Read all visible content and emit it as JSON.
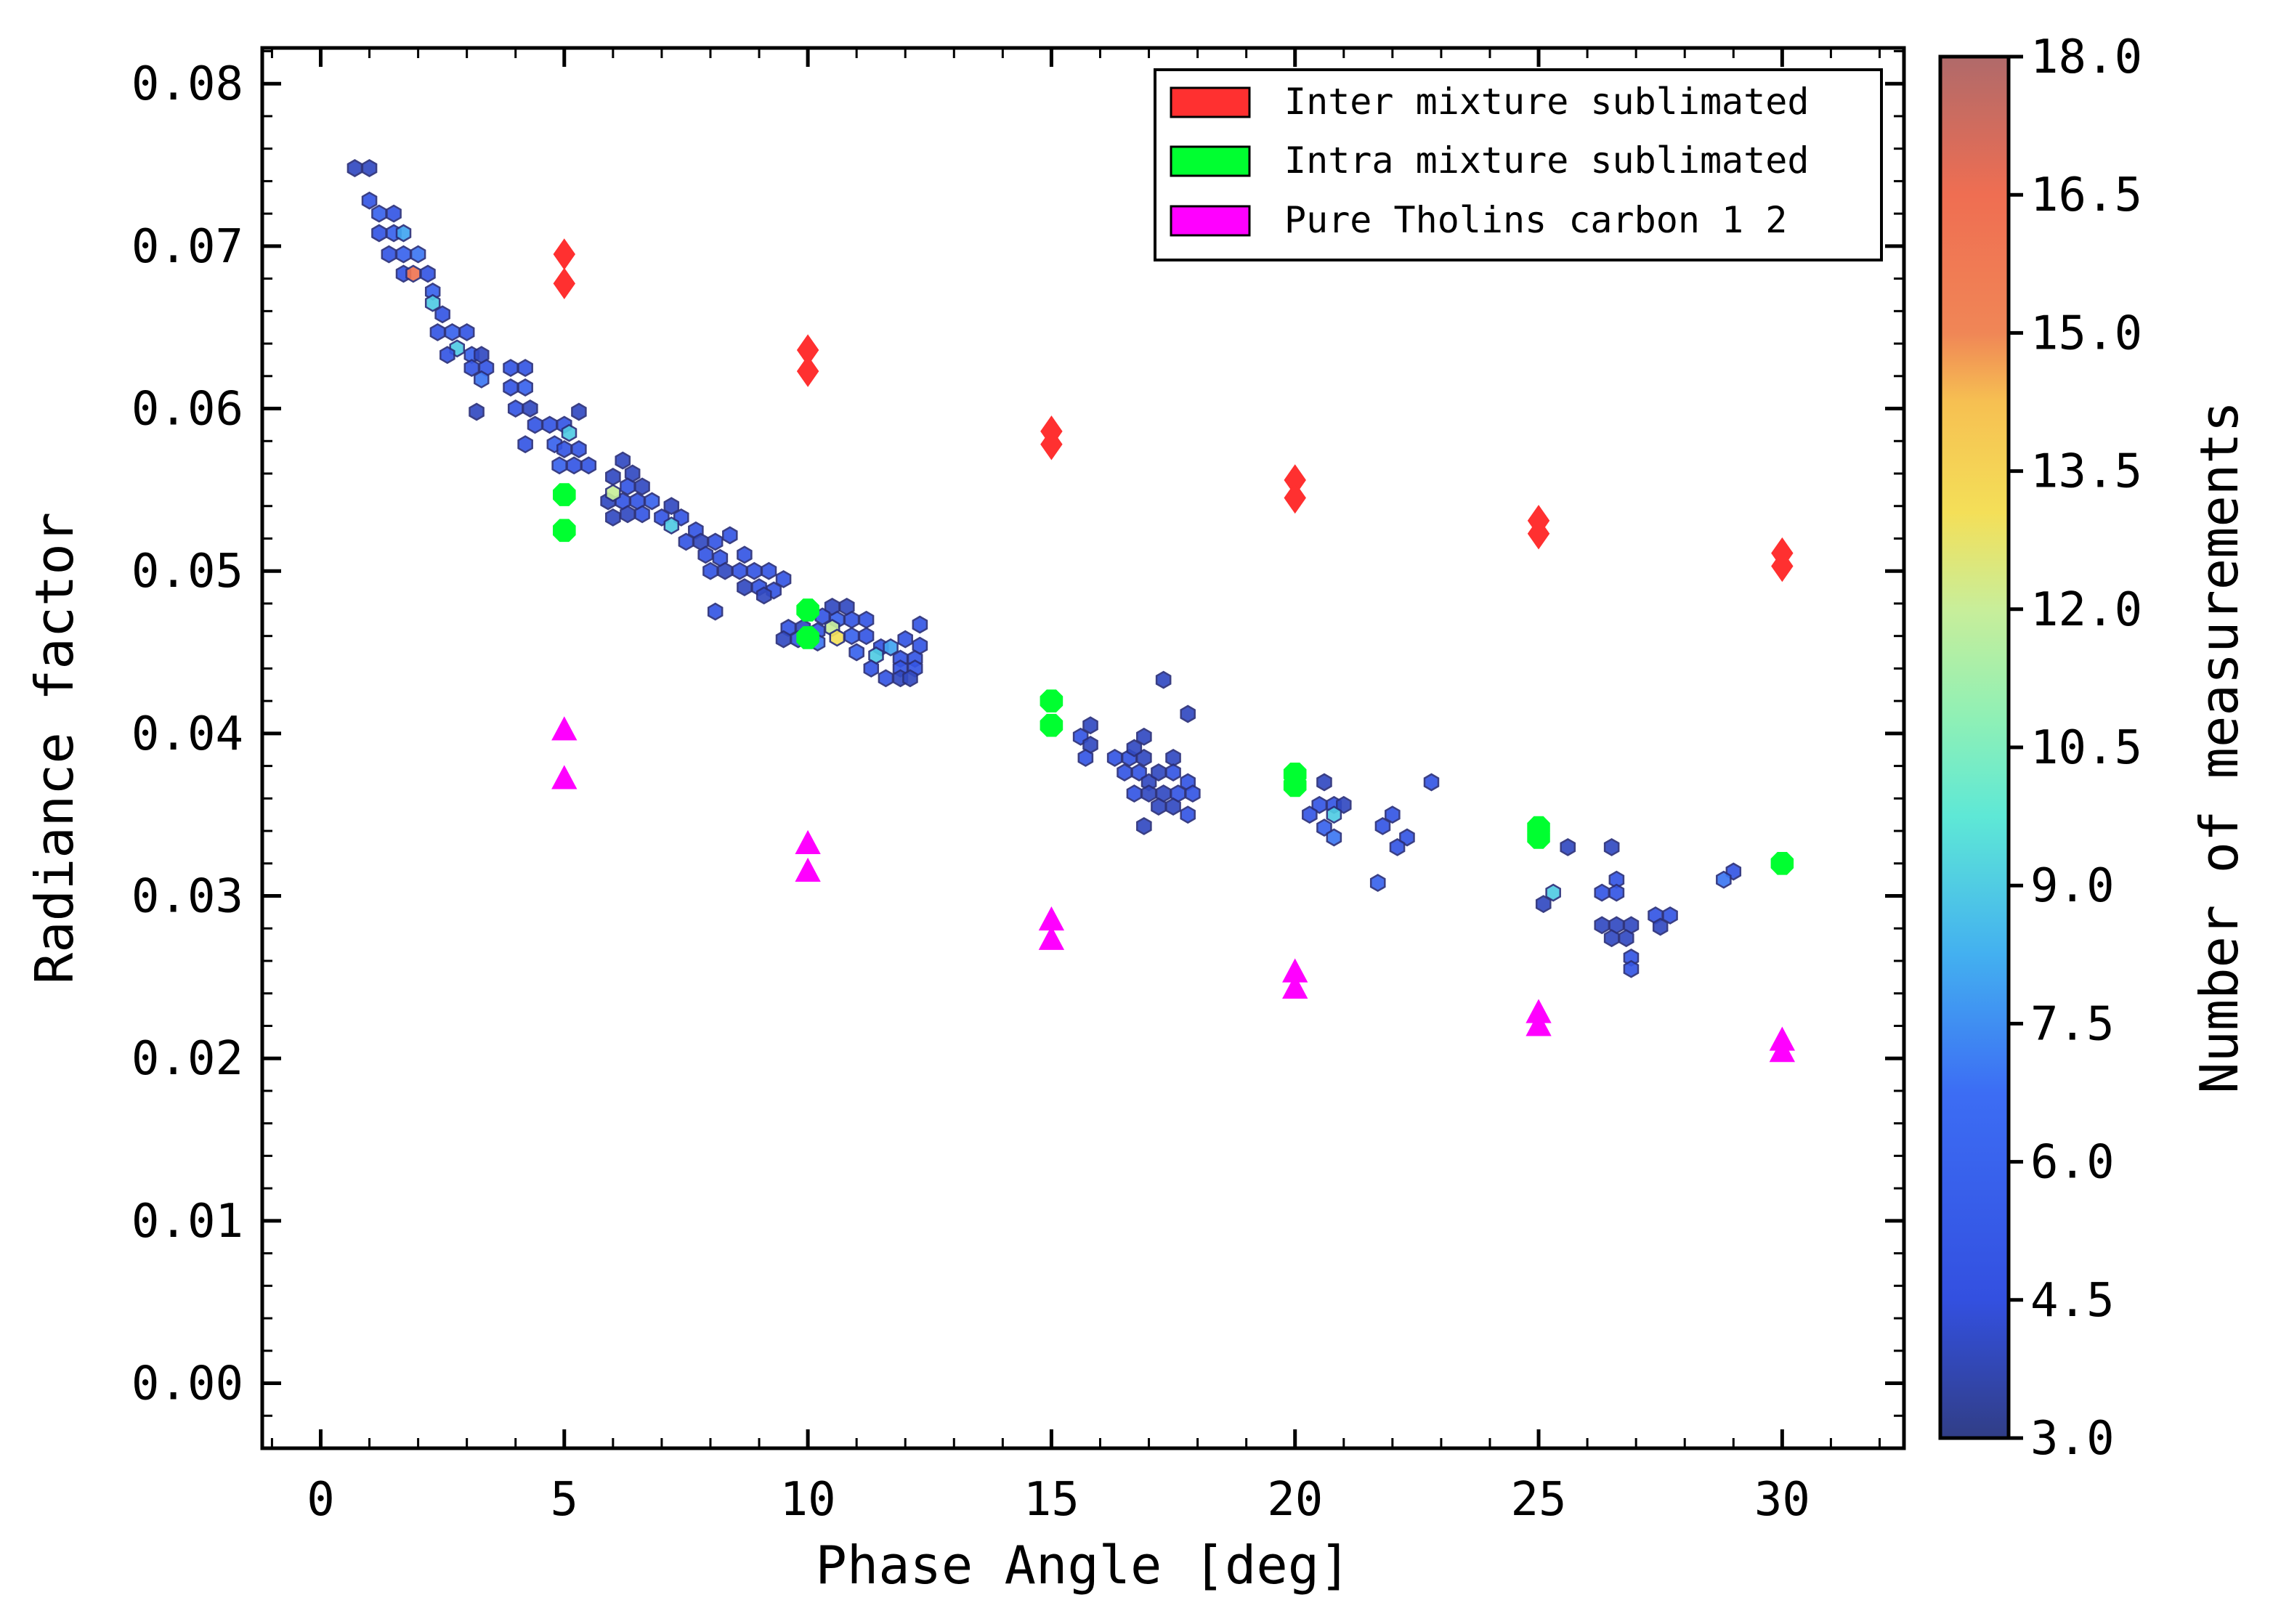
{
  "chart_data": {
    "type": "scatter",
    "xlabel": "Phase Angle [deg]",
    "ylabel": "Radiance factor",
    "xlim": [
      -1.2,
      32.5
    ],
    "ylim": [
      -0.004,
      0.0822
    ],
    "xticks": [
      0,
      5,
      10,
      15,
      20,
      25,
      30
    ],
    "xtick_labels": [
      "0",
      "5",
      "10",
      "15",
      "20",
      "25",
      "30"
    ],
    "yticks": [
      0.0,
      0.01,
      0.02,
      0.03,
      0.04,
      0.05,
      0.06,
      0.07,
      0.08
    ],
    "ytick_labels": [
      "0.00",
      "0.01",
      "0.02",
      "0.03",
      "0.04",
      "0.05",
      "0.06",
      "0.07",
      "0.08"
    ],
    "legend_position": "top-right",
    "series": [
      {
        "name": "Inter mixture sublimated",
        "color": "#ff3030",
        "marker": "diamond",
        "x": [
          5,
          5,
          10,
          10,
          15,
          15,
          20,
          20,
          25,
          25,
          30,
          30
        ],
        "y": [
          0.0695,
          0.0677,
          0.0636,
          0.0623,
          0.0586,
          0.0578,
          0.0556,
          0.0545,
          0.0531,
          0.0523,
          0.0511,
          0.0503
        ]
      },
      {
        "name": "Intra mixture sublimated",
        "color": "#00ff30",
        "marker": "octagon",
        "x": [
          5,
          5,
          10,
          10,
          15,
          15,
          20,
          20,
          25,
          25,
          30
        ],
        "y": [
          0.0547,
          0.0525,
          0.0476,
          0.0459,
          0.042,
          0.0405,
          0.0375,
          0.0368,
          0.0342,
          0.0336,
          0.032
        ]
      },
      {
        "name": "Pure Tholins carbon 1 2",
        "color": "#ff00ff",
        "marker": "triangle",
        "x": [
          5,
          5,
          10,
          10,
          15,
          15,
          20,
          20,
          25,
          25,
          30,
          30
        ],
        "y": [
          0.0402,
          0.0372,
          0.0332,
          0.0315,
          0.0285,
          0.0273,
          0.0253,
          0.0243,
          0.0228,
          0.022,
          0.0211,
          0.0204
        ]
      }
    ],
    "hexbin": {
      "name": "Number of measurements",
      "colormap": "jet",
      "vmin": 3.0,
      "vmax": 18.0,
      "points": [
        [
          0.7,
          0.0748,
          4
        ],
        [
          1.0,
          0.0748,
          4
        ],
        [
          1.0,
          0.0728,
          5
        ],
        [
          1.2,
          0.072,
          6
        ],
        [
          1.5,
          0.072,
          5
        ],
        [
          1.2,
          0.0708,
          5
        ],
        [
          1.5,
          0.0708,
          6
        ],
        [
          1.7,
          0.0708,
          8
        ],
        [
          1.4,
          0.0695,
          5
        ],
        [
          1.7,
          0.0695,
          6
        ],
        [
          2.0,
          0.0695,
          7
        ],
        [
          1.7,
          0.0683,
          5
        ],
        [
          1.9,
          0.0683,
          16
        ],
        [
          2.2,
          0.0683,
          5
        ],
        [
          2.3,
          0.0672,
          6
        ],
        [
          2.3,
          0.0665,
          9
        ],
        [
          2.5,
          0.0658,
          5
        ],
        [
          2.4,
          0.0647,
          5
        ],
        [
          2.7,
          0.0647,
          6
        ],
        [
          3.0,
          0.0647,
          5
        ],
        [
          2.8,
          0.0637,
          9
        ],
        [
          2.6,
          0.0633,
          5
        ],
        [
          3.1,
          0.0633,
          6
        ],
        [
          3.3,
          0.0633,
          4
        ],
        [
          3.1,
          0.0625,
          5
        ],
        [
          3.4,
          0.0625,
          5
        ],
        [
          3.3,
          0.0618,
          7
        ],
        [
          3.9,
          0.0625,
          5
        ],
        [
          4.2,
          0.0625,
          5
        ],
        [
          3.9,
          0.0613,
          5
        ],
        [
          4.2,
          0.0613,
          6
        ],
        [
          4.0,
          0.06,
          5
        ],
        [
          4.3,
          0.06,
          4
        ],
        [
          3.2,
          0.0598,
          4
        ],
        [
          4.4,
          0.059,
          5
        ],
        [
          4.7,
          0.059,
          5
        ],
        [
          5.0,
          0.059,
          5
        ],
        [
          5.3,
          0.0598,
          4
        ],
        [
          4.2,
          0.0578,
          5
        ],
        [
          4.8,
          0.0578,
          6
        ],
        [
          5.1,
          0.0585,
          9
        ],
        [
          5.0,
          0.0575,
          5
        ],
        [
          5.3,
          0.0575,
          5
        ],
        [
          4.9,
          0.0565,
          6
        ],
        [
          5.2,
          0.0565,
          5
        ],
        [
          5.5,
          0.0565,
          5
        ],
        [
          6.2,
          0.0568,
          4
        ],
        [
          6.0,
          0.0558,
          4
        ],
        [
          6.4,
          0.056,
          4
        ],
        [
          6.6,
          0.0552,
          4
        ],
        [
          6.3,
          0.0552,
          5
        ],
        [
          5.9,
          0.0543,
          4
        ],
        [
          6.2,
          0.0543,
          5
        ],
        [
          6.5,
          0.0543,
          5
        ],
        [
          6.8,
          0.0543,
          6
        ],
        [
          6.0,
          0.0548,
          12
        ],
        [
          6.0,
          0.0533,
          4
        ],
        [
          6.3,
          0.0535,
          4
        ],
        [
          6.6,
          0.0535,
          5
        ],
        [
          7.2,
          0.054,
          4
        ],
        [
          7.0,
          0.0533,
          5
        ],
        [
          7.4,
          0.0533,
          5
        ],
        [
          7.2,
          0.0528,
          9
        ],
        [
          7.7,
          0.0525,
          5
        ],
        [
          7.5,
          0.0518,
          5
        ],
        [
          7.8,
          0.0518,
          4
        ],
        [
          8.1,
          0.0518,
          5
        ],
        [
          8.4,
          0.0522,
          5
        ],
        [
          7.9,
          0.051,
          5
        ],
        [
          8.2,
          0.0508,
          5
        ],
        [
          8.7,
          0.051,
          5
        ],
        [
          8.0,
          0.05,
          5
        ],
        [
          8.3,
          0.05,
          4
        ],
        [
          8.6,
          0.05,
          5
        ],
        [
          8.9,
          0.05,
          5
        ],
        [
          9.2,
          0.05,
          5
        ],
        [
          9.5,
          0.0495,
          5
        ],
        [
          8.7,
          0.049,
          4
        ],
        [
          9.0,
          0.049,
          5
        ],
        [
          9.3,
          0.0488,
          5
        ],
        [
          9.1,
          0.0485,
          4
        ],
        [
          8.1,
          0.0475,
          5
        ],
        [
          10.5,
          0.0478,
          4
        ],
        [
          10.8,
          0.0478,
          4
        ],
        [
          10.3,
          0.0472,
          5
        ],
        [
          10.6,
          0.047,
          6
        ],
        [
          10.9,
          0.047,
          5
        ],
        [
          11.2,
          0.047,
          5
        ],
        [
          9.6,
          0.0465,
          5
        ],
        [
          9.9,
          0.0465,
          4
        ],
        [
          10.2,
          0.0463,
          5
        ],
        [
          10.5,
          0.0465,
          12
        ],
        [
          10.6,
          0.0459,
          13
        ],
        [
          9.5,
          0.0458,
          4
        ],
        [
          9.8,
          0.0458,
          5
        ],
        [
          10.2,
          0.0456,
          7
        ],
        [
          10.9,
          0.046,
          6
        ],
        [
          11.2,
          0.046,
          5
        ],
        [
          11.5,
          0.0453,
          5
        ],
        [
          11.0,
          0.045,
          6
        ],
        [
          11.4,
          0.0448,
          9
        ],
        [
          11.7,
          0.0453,
          8
        ],
        [
          11.9,
          0.0446,
          5
        ],
        [
          12.2,
          0.0446,
          5
        ],
        [
          12.3,
          0.0454,
          5
        ],
        [
          12.0,
          0.0458,
          5
        ],
        [
          12.3,
          0.0467,
          5
        ],
        [
          11.3,
          0.044,
          5
        ],
        [
          11.9,
          0.044,
          5
        ],
        [
          12.2,
          0.044,
          5
        ],
        [
          11.6,
          0.0434,
          5
        ],
        [
          11.9,
          0.0434,
          4
        ],
        [
          12.1,
          0.0434,
          4
        ],
        [
          17.3,
          0.0433,
          4
        ],
        [
          17.8,
          0.0412,
          4
        ],
        [
          15.8,
          0.0405,
          4
        ],
        [
          15.6,
          0.0398,
          5
        ],
        [
          15.8,
          0.0393,
          4
        ],
        [
          15.7,
          0.0385,
          5
        ],
        [
          16.3,
          0.0385,
          5
        ],
        [
          16.6,
          0.0385,
          5
        ],
        [
          16.9,
          0.0385,
          4
        ],
        [
          16.9,
          0.0398,
          4
        ],
        [
          16.7,
          0.0391,
          4
        ],
        [
          17.5,
          0.0385,
          4
        ],
        [
          16.5,
          0.0376,
          5
        ],
        [
          16.8,
          0.0376,
          5
        ],
        [
          17.0,
          0.037,
          4
        ],
        [
          17.2,
          0.0376,
          4
        ],
        [
          17.5,
          0.0376,
          5
        ],
        [
          17.8,
          0.037,
          5
        ],
        [
          16.7,
          0.0363,
          5
        ],
        [
          17.0,
          0.0363,
          4
        ],
        [
          17.3,
          0.0363,
          4
        ],
        [
          17.6,
          0.0363,
          5
        ],
        [
          17.9,
          0.0363,
          5
        ],
        [
          17.2,
          0.0355,
          4
        ],
        [
          17.5,
          0.0355,
          4
        ],
        [
          17.8,
          0.035,
          5
        ],
        [
          16.9,
          0.0343,
          4
        ],
        [
          20.6,
          0.037,
          4
        ],
        [
          20.5,
          0.0356,
          5
        ],
        [
          20.8,
          0.0356,
          5
        ],
        [
          21.0,
          0.0356,
          4
        ],
        [
          20.3,
          0.035,
          5
        ],
        [
          20.8,
          0.035,
          9
        ],
        [
          20.6,
          0.0342,
          6
        ],
        [
          20.8,
          0.0336,
          7
        ],
        [
          22.8,
          0.037,
          5
        ],
        [
          22.0,
          0.035,
          5
        ],
        [
          21.8,
          0.0343,
          5
        ],
        [
          22.3,
          0.0336,
          5
        ],
        [
          22.1,
          0.033,
          5
        ],
        [
          21.7,
          0.0308,
          6
        ],
        [
          26.5,
          0.033,
          4
        ],
        [
          25.6,
          0.033,
          4
        ],
        [
          26.6,
          0.031,
          5
        ],
        [
          26.3,
          0.0302,
          5
        ],
        [
          26.6,
          0.0302,
          5
        ],
        [
          25.3,
          0.0302,
          9
        ],
        [
          25.1,
          0.0295,
          4
        ],
        [
          27.4,
          0.0288,
          5
        ],
        [
          27.7,
          0.0288,
          5
        ],
        [
          26.3,
          0.0282,
          4
        ],
        [
          26.6,
          0.0282,
          4
        ],
        [
          26.9,
          0.0282,
          4
        ],
        [
          27.5,
          0.0281,
          4
        ],
        [
          26.5,
          0.0274,
          4
        ],
        [
          26.8,
          0.0274,
          4
        ],
        [
          26.9,
          0.0262,
          5
        ],
        [
          26.9,
          0.0255,
          5
        ],
        [
          29.0,
          0.0315,
          5
        ],
        [
          28.8,
          0.031,
          7
        ]
      ]
    }
  }
}
